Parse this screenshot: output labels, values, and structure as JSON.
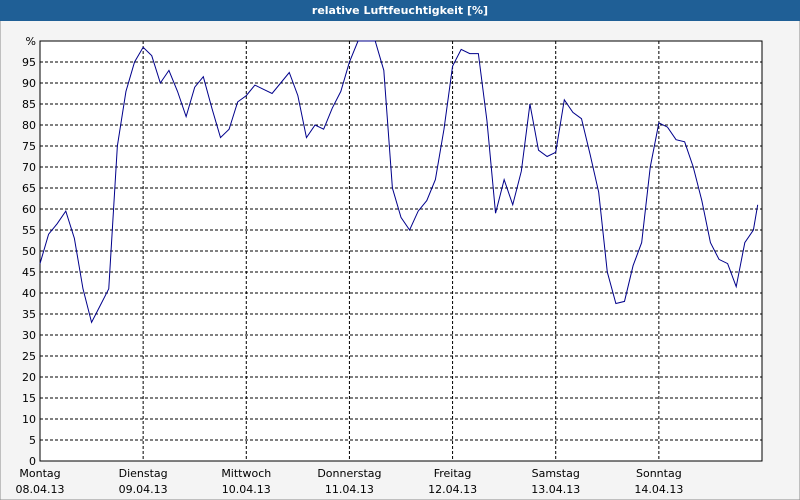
{
  "chart_data": {
    "type": "line",
    "title": "relative Luftfeuchtigkeit [%]",
    "x": [
      0,
      2,
      4,
      6,
      8,
      10,
      12,
      14,
      16,
      18,
      20,
      22,
      24,
      26,
      28,
      30,
      32,
      34,
      36,
      38,
      40,
      42,
      44,
      46,
      48,
      50,
      52,
      54,
      56,
      58,
      60,
      62,
      64,
      66,
      68,
      70,
      72,
      74,
      76,
      78,
      80,
      82,
      84,
      86,
      88,
      90,
      92,
      94,
      96,
      98,
      100,
      102,
      104,
      106,
      108,
      110,
      112,
      114,
      116,
      118,
      120,
      122,
      124,
      126,
      128,
      130,
      132,
      134,
      136,
      138,
      140,
      142,
      144,
      146,
      148,
      150,
      152,
      154,
      156,
      158,
      160,
      162,
      164,
      166,
      167
    ],
    "series": [
      {
        "color": "#00008b",
        "values": [
          47,
          54,
          56.5,
          59.5,
          53,
          41,
          33,
          37,
          41,
          75,
          88,
          95,
          98.5,
          96.5,
          90,
          93,
          88,
          82,
          89,
          91.5,
          84,
          77,
          79,
          85.5,
          87,
          89.5,
          88.5,
          87.5,
          90,
          92.5,
          87,
          77,
          80,
          79,
          84,
          88,
          95,
          100,
          100,
          100,
          93,
          65,
          58,
          55,
          59.5,
          62,
          67,
          79,
          94,
          98,
          97,
          97,
          81,
          59,
          67,
          61,
          69,
          85,
          74,
          72.5,
          73.5,
          86,
          83,
          81.5,
          73,
          64,
          45,
          37.5,
          38,
          46.5,
          52,
          70,
          80.5,
          79.5,
          76.5,
          76,
          70,
          62,
          52,
          48,
          47,
          41.5,
          52,
          55,
          61
        ]
      }
    ],
    "xlim": [
      0,
      168
    ],
    "xticks": [
      {
        "value": 0,
        "label": "Montag\n08.04.13"
      },
      {
        "value": 24,
        "label": "Dienstag\n09.04.13"
      },
      {
        "value": 48,
        "label": "Mittwoch\n10.04.13"
      },
      {
        "value": 72,
        "label": "Donnerstag\n11.04.13"
      },
      {
        "value": 96,
        "label": "Freitag\n12.04.13"
      },
      {
        "value": 120,
        "label": "Samstag\n13.04.13"
      },
      {
        "value": 144,
        "label": "Sonntag\n14.04.13"
      }
    ],
    "ylim": [
      0,
      100
    ],
    "yticks": [
      0,
      5,
      10,
      15,
      20,
      25,
      30,
      35,
      40,
      45,
      50,
      55,
      60,
      65,
      70,
      75,
      80,
      85,
      90,
      95,
      {
        "value": 100,
        "label": "%"
      }
    ],
    "grid": true
  }
}
